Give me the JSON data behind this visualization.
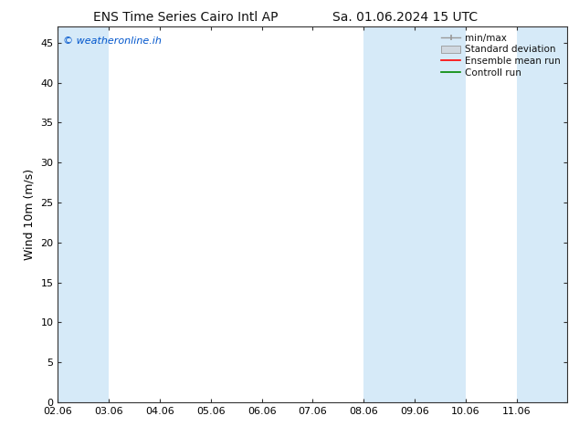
{
  "title_left": "ENS Time Series Cairo Intl AP",
  "title_right": "Sa. 01.06.2024 15 UTC",
  "ylabel": "Wind 10m (m/s)",
  "watermark": "© weatheronline.ih",
  "watermark_color": "#0055cc",
  "xlim_left": 0,
  "xlim_right": 10,
  "ylim_bottom": 0,
  "ylim_top": 47,
  "yticks": [
    0,
    5,
    10,
    15,
    20,
    25,
    30,
    35,
    40,
    45
  ],
  "xtick_positions": [
    0,
    1,
    2,
    3,
    4,
    5,
    6,
    7,
    8,
    9
  ],
  "xtick_labels": [
    "02.06",
    "03.06",
    "04.06",
    "05.06",
    "06.06",
    "07.06",
    "08.06",
    "09.06",
    "10.06",
    "11.06"
  ],
  "background_color": "#ffffff",
  "plot_bg_color": "#ffffff",
  "shaded_bands": [
    {
      "xmin": 0.0,
      "xmax": 1.0,
      "color": "#d6eaf8"
    },
    {
      "xmin": 6.0,
      "xmax": 8.0,
      "color": "#d6eaf8"
    },
    {
      "xmin": 9.0,
      "xmax": 10.0,
      "color": "#d6eaf8"
    }
  ],
  "legend_labels": [
    "min/max",
    "Standard deviation",
    "Ensemble mean run",
    "Controll run"
  ],
  "legend_colors": [
    "#999999",
    "#bbbbbb",
    "#ff0000",
    "#008800"
  ],
  "title_fontsize": 10,
  "ylabel_fontsize": 9,
  "tick_fontsize": 8,
  "watermark_fontsize": 8,
  "legend_fontsize": 7.5
}
